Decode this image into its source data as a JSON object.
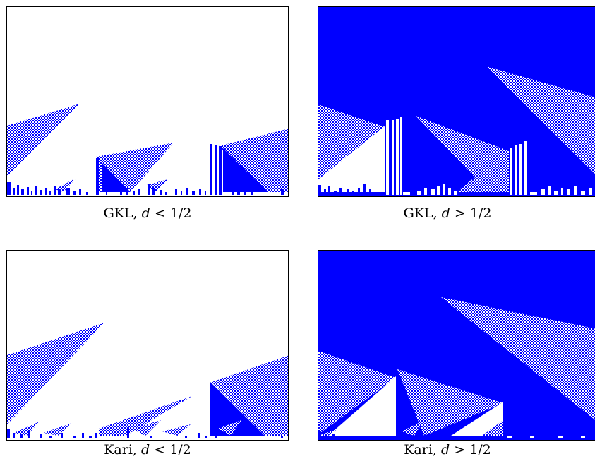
{
  "colors": {
    "fill": "#0000ff",
    "background": "#ffffff"
  },
  "panels": [
    {
      "id": "gkl-low",
      "caption_name": "GKL",
      "caption_var": "d",
      "caption_rel": "<",
      "caption_val": "1/2",
      "background": "white"
    },
    {
      "id": "gkl-high",
      "caption_name": "GKL",
      "caption_var": "d",
      "caption_rel": ">",
      "caption_val": "1/2",
      "background": "blue"
    },
    {
      "id": "kari-low",
      "caption_name": "Kari",
      "caption_var": "d",
      "caption_rel": "<",
      "caption_val": "1/2",
      "background": "white"
    },
    {
      "id": "kari-high",
      "caption_name": "Kari",
      "caption_var": "d",
      "caption_rel": ">",
      "caption_val": "1/2",
      "background": "blue"
    }
  ]
}
